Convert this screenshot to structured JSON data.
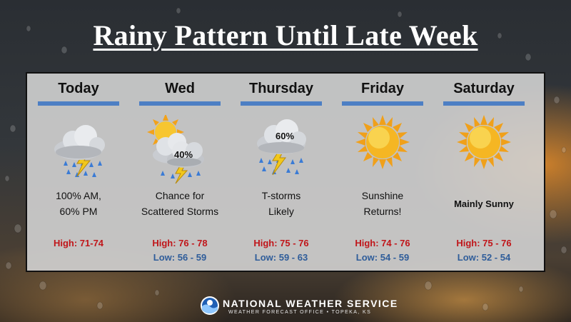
{
  "title": "Rainy Pattern Until Late Week",
  "days": [
    {
      "name": "Today",
      "icon": "rain-storm-cloud-icon",
      "desc_line1": "100% AM,",
      "desc_line2": "60% PM",
      "high": "High: 71-74",
      "low": ""
    },
    {
      "name": "Wed",
      "icon": "sun-storm-cloud-icon",
      "percent": "40%",
      "desc_line1": "Chance for",
      "desc_line2": "Scattered Storms",
      "high": "High: 76 - 78",
      "low": "Low:  56 - 59"
    },
    {
      "name": "Thursday",
      "icon": "rain-storm-cloud-icon",
      "percent": "60%",
      "desc_line1": "T-storms",
      "desc_line2": "Likely",
      "high": "High: 75 - 76",
      "low": "Low:  59 - 63"
    },
    {
      "name": "Friday",
      "icon": "sun-icon",
      "desc_line1": "Sunshine",
      "desc_line2": "Returns!",
      "high": "High: 74 - 76",
      "low": "Low:  54 - 59"
    },
    {
      "name": "Saturday",
      "icon": "sun-icon",
      "desc_line1": "Mainly Sunny",
      "desc_line2": "",
      "high": "High: 75 - 76",
      "low": "Low:  52 - 54"
    }
  ],
  "footer": {
    "name": "NATIONAL WEATHER SERVICE",
    "sub": "WEATHER FORECAST OFFICE  •  TOPEKA, KS"
  },
  "colors": {
    "high": "#c0161a",
    "low": "#2f5d9a",
    "bar": "#4d7fc4"
  }
}
